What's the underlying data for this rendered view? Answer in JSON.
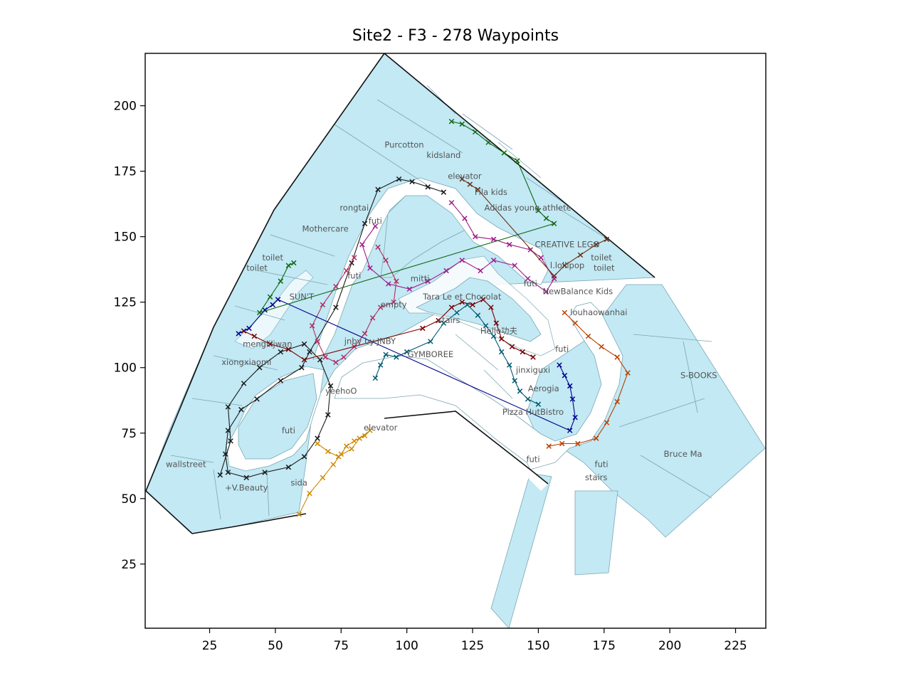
{
  "title": "Site2 - F3 - 278 Waypoints",
  "axes": {
    "x_ticks": [
      "25",
      "50",
      "75",
      "100",
      "125",
      "150",
      "175",
      "200",
      "225"
    ],
    "y_ticks": [
      "200",
      "175",
      "150",
      "125",
      "100",
      "75",
      "50",
      "25"
    ],
    "x_tick_values": [
      25,
      50,
      75,
      100,
      125,
      150,
      175,
      200,
      225
    ],
    "y_tick_values": [
      200,
      175,
      150,
      125,
      100,
      75,
      50,
      25
    ],
    "xlim": [
      0.5,
      236.5
    ],
    "ylim": [
      0.5,
      220
    ]
  },
  "store_labels": [
    {
      "text": "Purcotton",
      "x": 99,
      "y": 184
    },
    {
      "text": "kidsland",
      "x": 114,
      "y": 180
    },
    {
      "text": "elevator",
      "x": 122,
      "y": 172
    },
    {
      "text": "Fila kids",
      "x": 132,
      "y": 166
    },
    {
      "text": "Adidas young athlete",
      "x": 146,
      "y": 160
    },
    {
      "text": "rongtai",
      "x": 80,
      "y": 160
    },
    {
      "text": "futi",
      "x": 88,
      "y": 155
    },
    {
      "text": "Mothercare",
      "x": 69,
      "y": 152
    },
    {
      "text": "CREATIVE LEGO",
      "x": 161,
      "y": 146
    },
    {
      "text": "toilet",
      "x": 49,
      "y": 141
    },
    {
      "text": "toilet",
      "x": 174,
      "y": 141
    },
    {
      "text": "toilet",
      "x": 43,
      "y": 137
    },
    {
      "text": "toilet",
      "x": 175,
      "y": 137
    },
    {
      "text": "l.lollipop",
      "x": 161,
      "y": 138
    },
    {
      "text": "futi",
      "x": 80,
      "y": 134
    },
    {
      "text": "mitti",
      "x": 105,
      "y": 133
    },
    {
      "text": "futi",
      "x": 147,
      "y": 131
    },
    {
      "text": "NewBalance Kids",
      "x": 165,
      "y": 128
    },
    {
      "text": "SUN'T",
      "x": 60,
      "y": 126
    },
    {
      "text": "Tara Le et Chocolat",
      "x": 121,
      "y": 126
    },
    {
      "text": "empty",
      "x": 95,
      "y": 123
    },
    {
      "text": "louhaowanhai",
      "x": 173,
      "y": 120
    },
    {
      "text": "stairs",
      "x": 116,
      "y": 117
    },
    {
      "text": "Hello功夫",
      "x": 135,
      "y": 113
    },
    {
      "text": "mengliijwan",
      "x": 47,
      "y": 108
    },
    {
      "text": "jnby by JNBY",
      "x": 86,
      "y": 109
    },
    {
      "text": "futi",
      "x": 159,
      "y": 106
    },
    {
      "text": "GYMBOREE",
      "x": 109,
      "y": 104
    },
    {
      "text": "xiongxiaomi",
      "x": 39,
      "y": 101
    },
    {
      "text": "jinxiguxi",
      "x": 148,
      "y": 98
    },
    {
      "text": "S-BOOKS",
      "x": 211,
      "y": 96
    },
    {
      "text": "yeehoO",
      "x": 75,
      "y": 90
    },
    {
      "text": "Aerogia",
      "x": 152,
      "y": 91
    },
    {
      "text": "Pizza HutBistro",
      "x": 148,
      "y": 82
    },
    {
      "text": "elevator",
      "x": 90,
      "y": 76
    },
    {
      "text": "futi",
      "x": 55,
      "y": 75
    },
    {
      "text": "Bruce Ma",
      "x": 205,
      "y": 66
    },
    {
      "text": "wallstreet",
      "x": 16,
      "y": 62
    },
    {
      "text": "futi",
      "x": 148,
      "y": 64
    },
    {
      "text": "futi",
      "x": 174,
      "y": 62
    },
    {
      "text": "stairs",
      "x": 172,
      "y": 57
    },
    {
      "text": "+V.Beauty",
      "x": 39,
      "y": 53
    },
    {
      "text": "sida",
      "x": 59,
      "y": 55
    }
  ],
  "chart_data": {
    "type": "scatter",
    "title": "Site2 - F3 - 278 Waypoints",
    "xlim": [
      0.5,
      236.5
    ],
    "ylim": [
      0.5,
      220
    ],
    "grid": false,
    "series": [
      {
        "color": "#1a1a1a",
        "points": [
          [
            29,
            59
          ],
          [
            33,
            72
          ],
          [
            32,
            85
          ],
          [
            38,
            94
          ],
          [
            44,
            100
          ],
          [
            52,
            106
          ],
          [
            61,
            109
          ],
          [
            67,
            103
          ],
          [
            71,
            93
          ],
          [
            70,
            82
          ],
          [
            66,
            73
          ],
          [
            61,
            66
          ],
          [
            55,
            62
          ],
          [
            46,
            60
          ],
          [
            39,
            58
          ],
          [
            32,
            60
          ],
          [
            31,
            67
          ],
          [
            32,
            76
          ],
          [
            37,
            84
          ],
          [
            43,
            88
          ],
          [
            52,
            95
          ],
          [
            60,
            100
          ],
          [
            63,
            106
          ],
          [
            73,
            123
          ],
          [
            79,
            140
          ],
          [
            84,
            155
          ],
          [
            89,
            168
          ],
          [
            97,
            172
          ],
          [
            102,
            171
          ],
          [
            108,
            169
          ],
          [
            114,
            167
          ]
        ]
      },
      {
        "color": "#a0198a",
        "points": [
          [
            117,
            163
          ],
          [
            122,
            157
          ],
          [
            126,
            150
          ],
          [
            133,
            149
          ],
          [
            139,
            147
          ],
          [
            147,
            145
          ],
          [
            151,
            142
          ],
          [
            156,
            134
          ],
          [
            153,
            129
          ],
          [
            146,
            134
          ],
          [
            141,
            139
          ],
          [
            133,
            141
          ],
          [
            128,
            137
          ],
          [
            121,
            141
          ],
          [
            115,
            137
          ],
          [
            108,
            133
          ],
          [
            101,
            130
          ],
          [
            93,
            132
          ],
          [
            86,
            138
          ],
          [
            83,
            147
          ],
          [
            88,
            154
          ]
        ]
      },
      {
        "color": "#b03060",
        "points": [
          [
            89,
            146
          ],
          [
            92,
            141
          ],
          [
            96,
            133
          ],
          [
            95,
            125
          ],
          [
            90,
            123
          ],
          [
            87,
            119
          ],
          [
            84,
            113
          ],
          [
            80,
            108
          ],
          [
            76,
            104
          ],
          [
            73,
            102
          ],
          [
            69,
            104
          ],
          [
            66,
            110
          ],
          [
            64,
            116
          ],
          [
            68,
            124
          ],
          [
            73,
            131
          ],
          [
            77,
            137
          ],
          [
            80,
            142
          ]
        ]
      },
      {
        "color": "#7a0000",
        "points": [
          [
            38,
            114
          ],
          [
            42,
            112
          ],
          [
            48,
            109
          ],
          [
            55,
            107
          ],
          [
            61,
            103
          ],
          [
            106,
            115
          ],
          [
            112,
            118
          ],
          [
            117,
            123
          ],
          [
            121,
            125
          ],
          [
            125,
            124
          ],
          [
            129,
            126
          ],
          [
            132,
            123
          ],
          [
            134,
            117
          ],
          [
            136,
            111
          ],
          [
            140,
            108
          ],
          [
            144,
            106
          ],
          [
            148,
            104
          ]
        ]
      },
      {
        "color": "#005a6e",
        "points": [
          [
            88,
            96
          ],
          [
            90,
            101
          ],
          [
            92,
            105
          ],
          [
            96,
            104
          ],
          [
            100,
            106
          ],
          [
            109,
            110
          ],
          [
            114,
            117
          ],
          [
            119,
            121
          ],
          [
            123,
            124
          ],
          [
            127,
            120
          ],
          [
            130,
            116
          ],
          [
            133,
            112
          ],
          [
            136,
            106
          ],
          [
            139,
            101
          ],
          [
            141,
            95
          ],
          [
            143,
            91
          ],
          [
            146,
            88
          ],
          [
            150,
            86
          ]
        ]
      },
      {
        "color": "#cc8800",
        "points": [
          [
            59,
            44
          ],
          [
            63,
            52
          ],
          [
            68,
            58
          ],
          [
            72,
            63
          ],
          [
            75,
            67
          ],
          [
            77,
            70
          ],
          [
            80,
            72
          ],
          [
            84,
            74
          ],
          [
            86,
            76
          ],
          [
            82,
            73
          ],
          [
            79,
            69
          ],
          [
            74,
            66
          ],
          [
            70,
            68
          ],
          [
            66,
            71
          ]
        ]
      },
      {
        "color": "#b84000",
        "points": [
          [
            154,
            70
          ],
          [
            159,
            71
          ],
          [
            165,
            71
          ],
          [
            172,
            73
          ],
          [
            176,
            79
          ],
          [
            180,
            87
          ],
          [
            184,
            98
          ],
          [
            180,
            104
          ],
          [
            174,
            108
          ],
          [
            169,
            112
          ],
          [
            164,
            117
          ],
          [
            160,
            121
          ]
        ]
      },
      {
        "color": "#00008b",
        "points": [
          [
            36,
            113
          ],
          [
            40,
            115
          ],
          [
            46,
            122
          ],
          [
            49,
            124
          ],
          [
            51,
            126
          ],
          [
            162,
            76
          ],
          [
            164,
            81
          ],
          [
            163,
            88
          ],
          [
            162,
            93
          ],
          [
            160,
            97
          ],
          [
            158,
            101
          ]
        ]
      },
      {
        "color": "#116611",
        "points": [
          [
            117,
            194
          ],
          [
            121,
            193
          ],
          [
            126,
            190
          ],
          [
            131,
            186
          ],
          [
            137,
            182
          ],
          [
            142,
            179
          ],
          [
            150,
            160
          ],
          [
            153,
            157
          ],
          [
            156,
            155
          ],
          [
            44,
            121
          ],
          [
            48,
            127
          ],
          [
            52,
            133
          ],
          [
            55,
            139
          ],
          [
            57,
            140
          ]
        ]
      },
      {
        "color": "#6b2a0a",
        "points": [
          [
            121,
            172
          ],
          [
            124,
            170
          ],
          [
            127,
            168
          ],
          [
            156,
            135
          ],
          [
            160,
            139
          ],
          [
            166,
            143
          ],
          [
            172,
            147
          ],
          [
            176,
            149
          ]
        ]
      }
    ]
  }
}
